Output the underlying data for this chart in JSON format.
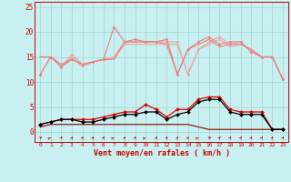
{
  "xlabel": "Vent moyen/en rafales ( km/h )",
  "x_ticks": [
    0,
    1,
    2,
    3,
    4,
    5,
    6,
    7,
    8,
    9,
    10,
    11,
    12,
    13,
    14,
    15,
    16,
    17,
    18,
    19,
    20,
    21,
    22,
    23
  ],
  "ylim": [
    -2,
    26
  ],
  "yticks": [
    0,
    5,
    10,
    15,
    20,
    25
  ],
  "background_color": "#c8f0f0",
  "grid_color": "#a8d8d8",
  "lines": [
    {
      "y": [
        11.5,
        15.0,
        13.0,
        15.5,
        13.5,
        14.0,
        14.5,
        15.0,
        18.0,
        18.0,
        18.0,
        18.0,
        18.0,
        18.0,
        11.5,
        16.5,
        18.0,
        19.0,
        17.5,
        18.0,
        16.0,
        15.0,
        15.0,
        10.5
      ],
      "color": "#f4a0a0",
      "linewidth": 0.8,
      "marker": "D",
      "markersize": 1.5,
      "zorder": 2
    },
    {
      "y": [
        15.0,
        15.0,
        13.0,
        15.0,
        13.0,
        14.0,
        14.5,
        14.5,
        17.5,
        17.5,
        17.5,
        17.5,
        17.5,
        17.5,
        11.5,
        16.5,
        17.5,
        18.5,
        17.0,
        17.5,
        16.5,
        15.0,
        15.0,
        10.5
      ],
      "color": "#f4a0a0",
      "linewidth": 0.8,
      "marker": null,
      "markersize": 0,
      "zorder": 2
    },
    {
      "y": [
        11.5,
        15.0,
        13.0,
        14.5,
        13.5,
        14.0,
        14.5,
        21.0,
        18.0,
        18.5,
        18.0,
        18.0,
        18.5,
        11.5,
        16.5,
        18.0,
        19.0,
        17.5,
        18.0,
        18.0,
        16.0,
        15.0,
        15.0,
        10.5
      ],
      "color": "#e88080",
      "linewidth": 0.8,
      "marker": "D",
      "markersize": 1.5,
      "zorder": 3
    },
    {
      "y": [
        15.0,
        15.0,
        13.5,
        14.5,
        13.5,
        14.0,
        14.5,
        14.5,
        18.0,
        18.0,
        18.0,
        18.0,
        17.5,
        11.5,
        16.5,
        17.5,
        18.5,
        17.0,
        17.5,
        17.5,
        16.5,
        15.0,
        15.0,
        10.5
      ],
      "color": "#e88080",
      "linewidth": 0.8,
      "marker": null,
      "markersize": 0,
      "zorder": 3
    },
    {
      "y": [
        1.5,
        2.0,
        2.5,
        2.5,
        2.5,
        2.5,
        3.0,
        3.5,
        4.0,
        4.0,
        5.5,
        4.5,
        3.0,
        4.5,
        4.5,
        6.5,
        7.0,
        7.0,
        4.5,
        4.0,
        4.0,
        4.0,
        0.5,
        0.5
      ],
      "color": "#dd0000",
      "linewidth": 0.9,
      "marker": "D",
      "markersize": 2.0,
      "zorder": 5
    },
    {
      "y": [
        1.0,
        1.5,
        1.5,
        1.5,
        1.5,
        1.5,
        1.5,
        1.5,
        1.5,
        1.5,
        1.5,
        1.5,
        1.5,
        1.5,
        1.5,
        1.0,
        0.5,
        0.5,
        0.5,
        0.5,
        0.5,
        0.5,
        0.5,
        0.5
      ],
      "color": "#880000",
      "linewidth": 0.8,
      "marker": null,
      "markersize": 0,
      "zorder": 3
    },
    {
      "y": [
        1.5,
        2.0,
        2.5,
        2.5,
        2.0,
        2.0,
        2.5,
        3.0,
        3.5,
        3.5,
        4.0,
        4.0,
        2.5,
        3.5,
        4.0,
        6.0,
        6.5,
        6.5,
        4.0,
        3.5,
        3.5,
        3.5,
        0.5,
        0.5
      ],
      "color": "#000000",
      "linewidth": 0.9,
      "marker": "D",
      "markersize": 2.0,
      "zorder": 6
    }
  ],
  "arrow_data": [
    [
      0,
      45
    ],
    [
      1,
      70
    ],
    [
      2,
      20
    ],
    [
      3,
      10
    ],
    [
      4,
      10
    ],
    [
      5,
      10
    ],
    [
      6,
      10
    ],
    [
      7,
      70
    ],
    [
      8,
      10
    ],
    [
      9,
      10
    ],
    [
      10,
      70
    ],
    [
      11,
      10
    ],
    [
      12,
      10
    ],
    [
      13,
      10
    ],
    [
      14,
      10
    ],
    [
      15,
      70
    ],
    [
      16,
      60
    ],
    [
      17,
      20
    ],
    [
      18,
      20
    ],
    [
      19,
      20
    ],
    [
      20,
      10
    ],
    [
      21,
      20
    ],
    [
      22,
      10
    ],
    [
      23,
      20
    ]
  ]
}
